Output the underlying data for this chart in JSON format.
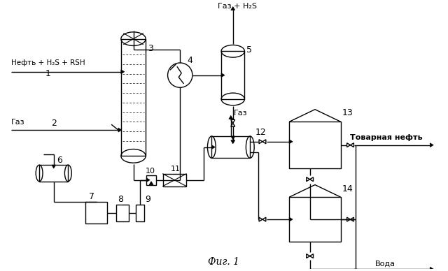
{
  "title": "Фиг. 1",
  "background_color": "#ffffff",
  "line_color": "#000000",
  "labels": {
    "inlet1": "Нефть + H₂S + RSH",
    "num1": "1",
    "inlet2": "Газ",
    "num2": "2",
    "num3": "3",
    "num4": "4",
    "num5": "5",
    "num6": "6",
    "num7": "7",
    "num8": "8",
    "num9": "9",
    "num10": "10",
    "num11": "11",
    "num12": "12",
    "num13": "13",
    "num14": "14",
    "gas_h2s": "Газ + H₂S",
    "gas": "Газ",
    "product": "Товарная нефть",
    "water": "Вода"
  }
}
